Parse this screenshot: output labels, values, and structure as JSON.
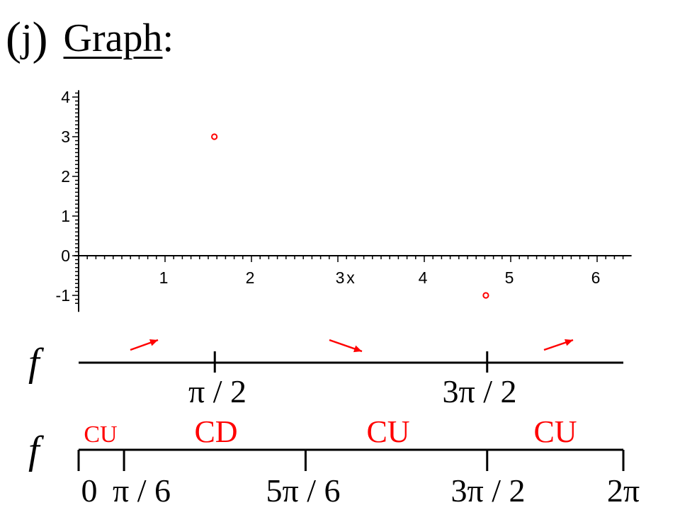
{
  "heading": {
    "label": "j",
    "title": "Graph",
    "colon": ":"
  },
  "chart_data": {
    "type": "scatter",
    "x_ticks": [
      "1",
      "2",
      "3",
      "4",
      "5",
      "6"
    ],
    "x_tick_values": [
      1,
      2,
      3,
      4,
      5,
      6
    ],
    "x_axis_letter": "x",
    "y_ticks": [
      "-1",
      "0",
      "1",
      "2",
      "3",
      "4"
    ],
    "y_tick_values": [
      -1,
      0,
      1,
      2,
      3,
      4
    ],
    "xlim": [
      -0.05,
      6.3
    ],
    "ylim": [
      -1.2,
      4.1
    ],
    "grid": false,
    "points": [
      {
        "x": 1.5708,
        "y": 3
      },
      {
        "x": 4.7124,
        "y": -1
      }
    ],
    "point_color": "#ff0000"
  },
  "increase_line": {
    "function_label": "f",
    "tick_labels": [
      "π / 2",
      "3π / 2"
    ],
    "tick_values": [
      1.5708,
      4.7124
    ],
    "range": [
      0,
      6.2832
    ],
    "arrows": [
      "up",
      "down",
      "up"
    ],
    "arrow_color": "#ff0000"
  },
  "concavity_line": {
    "function_label": "f",
    "tick_labels": [
      "0",
      "π / 6",
      "5π / 6",
      "3π / 2",
      "2π"
    ],
    "tick_values": [
      0,
      0.5236,
      2.618,
      4.7124,
      6.2832
    ],
    "range": [
      0,
      6.2832
    ],
    "intervals": [
      "CU",
      "CD",
      "CU",
      "CU"
    ],
    "label_color": "#ff0000"
  }
}
